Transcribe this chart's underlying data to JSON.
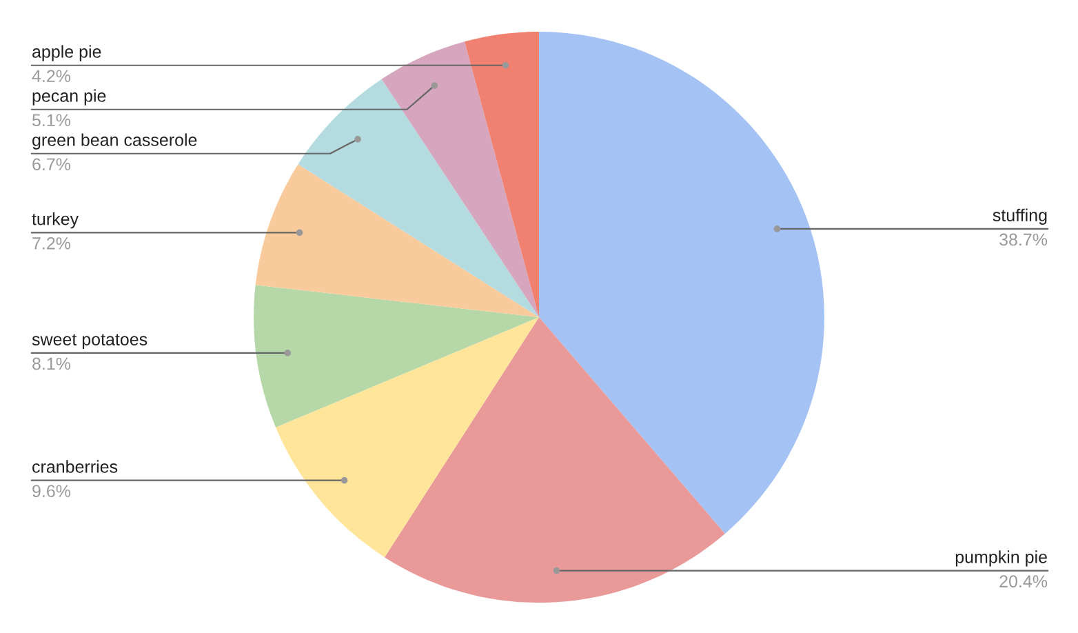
{
  "chart_data": {
    "type": "pie",
    "categories": [
      "stuffing",
      "pumpkin pie",
      "cranberries",
      "sweet potatoes",
      "turkey",
      "green bean casserole",
      "pecan pie",
      "apple pie"
    ],
    "values": [
      38.7,
      20.4,
      9.6,
      8.1,
      7.2,
      6.7,
      5.1,
      4.2
    ],
    "value_labels": [
      "38.7%",
      "20.4%",
      "9.6%",
      "8.1%",
      "7.2%",
      "6.7%",
      "5.1%",
      "4.2%"
    ],
    "colors": [
      "#a4c2f4",
      "#ea9999",
      "#ffe599",
      "#b6d7a8",
      "#f9cb9c",
      "#b4dce0",
      "#d5a6bd",
      "#f08070"
    ],
    "legend": false
  }
}
